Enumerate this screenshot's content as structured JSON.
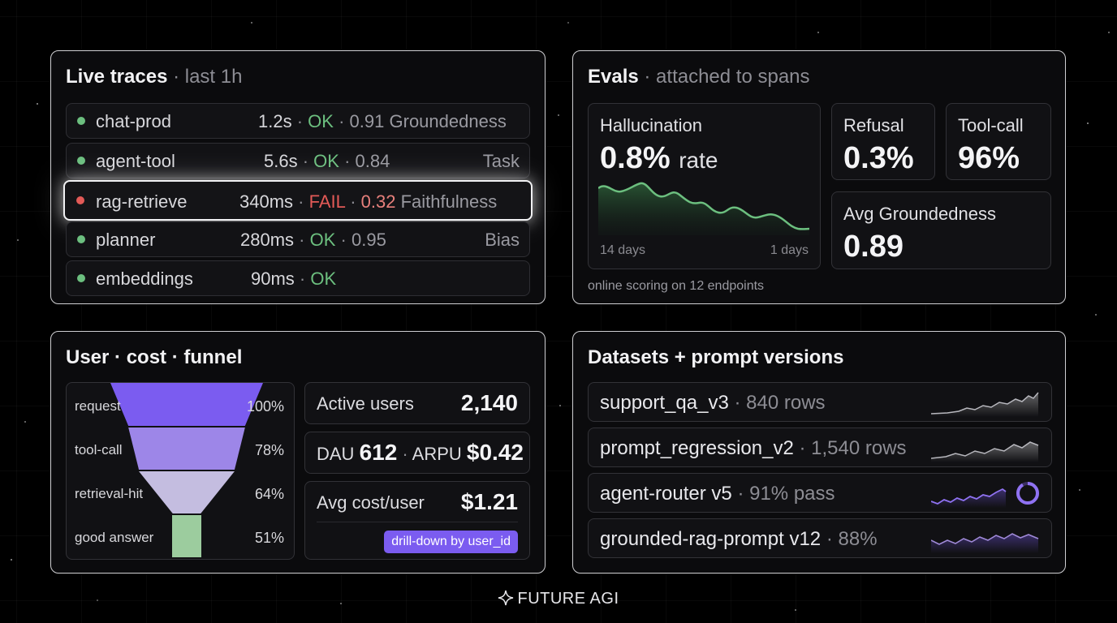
{
  "traces": {
    "title": "Live traces",
    "subtitle": "· last 1h",
    "rows": [
      {
        "name": "chat-prod",
        "latency": "1.2s",
        "status": "OK",
        "score": "0.91",
        "metric": "Groundedness"
      },
      {
        "name": "agent-tool",
        "latency": "5.6s",
        "status": "OK",
        "score": "0.84",
        "metric": "Task"
      },
      {
        "name": "rag-retrieve",
        "latency": "340ms",
        "status": "FAIL",
        "score": "0.32",
        "metric": "Faithfulness"
      },
      {
        "name": "planner",
        "latency": "280ms",
        "status": "OK",
        "score": "0.95",
        "metric": "Bias"
      },
      {
        "name": "embeddings",
        "latency": "90ms",
        "status": "OK",
        "score": "",
        "metric": ""
      }
    ],
    "sep": "·"
  },
  "evals": {
    "title": "Evals",
    "subtitle": "· attached to spans",
    "hallucination": {
      "label": "Hallucination",
      "value": "0.8%",
      "unit": "rate",
      "x_start": "14 days",
      "x_end": "1 days"
    },
    "refusal": {
      "label": "Refusal",
      "value": "0.3%"
    },
    "toolcall": {
      "label": "Tool-call",
      "value": "96%"
    },
    "groundedness": {
      "label": "Avg Groundedness",
      "value": "0.89"
    },
    "footnote": "online scoring on 12 endpoints"
  },
  "funnel": {
    "title": "User · cost · funnel",
    "stages": [
      {
        "label": "request",
        "pct": "100%",
        "value": 100
      },
      {
        "label": "tool-call",
        "pct": "78%",
        "value": 78
      },
      {
        "label": "retrieval-hit",
        "pct": "64%",
        "value": 64
      },
      {
        "label": "good answer",
        "pct": "51%",
        "value": 51
      }
    ],
    "active_users": {
      "label": "Active users",
      "value": "2,140"
    },
    "dau": {
      "label": "DAU",
      "value": "612",
      "sep": "·",
      "arpu_label": "ARPU",
      "arpu_value": "$0.42"
    },
    "avg_cost": {
      "label": "Avg cost/user",
      "value": "$1.21"
    },
    "drill_button": "drill-down by user_id"
  },
  "datasets": {
    "title": "Datasets + prompt versions",
    "rows": [
      {
        "name": "support_qa_v3",
        "sep": "·",
        "meta": "840 rows"
      },
      {
        "name": "prompt_regression_v2",
        "sep": "·",
        "meta": "1,540 rows"
      },
      {
        "name": "agent-router v5",
        "sep": "·",
        "meta": "91% pass",
        "pass_rate": 0.91
      },
      {
        "name": "grounded-rag-prompt v12",
        "sep": "·",
        "meta": "88%"
      }
    ]
  },
  "footer": {
    "brand": "FUTURE AGI",
    "icon": "sparkle-icon"
  },
  "colors": {
    "ok": "#6cbf7f",
    "fail": "#e35a57",
    "accent": "#7b5cf0",
    "chart_green": "#6cbf7f",
    "funnel": [
      "#7b5cf0",
      "#9d86e8",
      "#c4bde0",
      "#9ccc9e"
    ]
  }
}
